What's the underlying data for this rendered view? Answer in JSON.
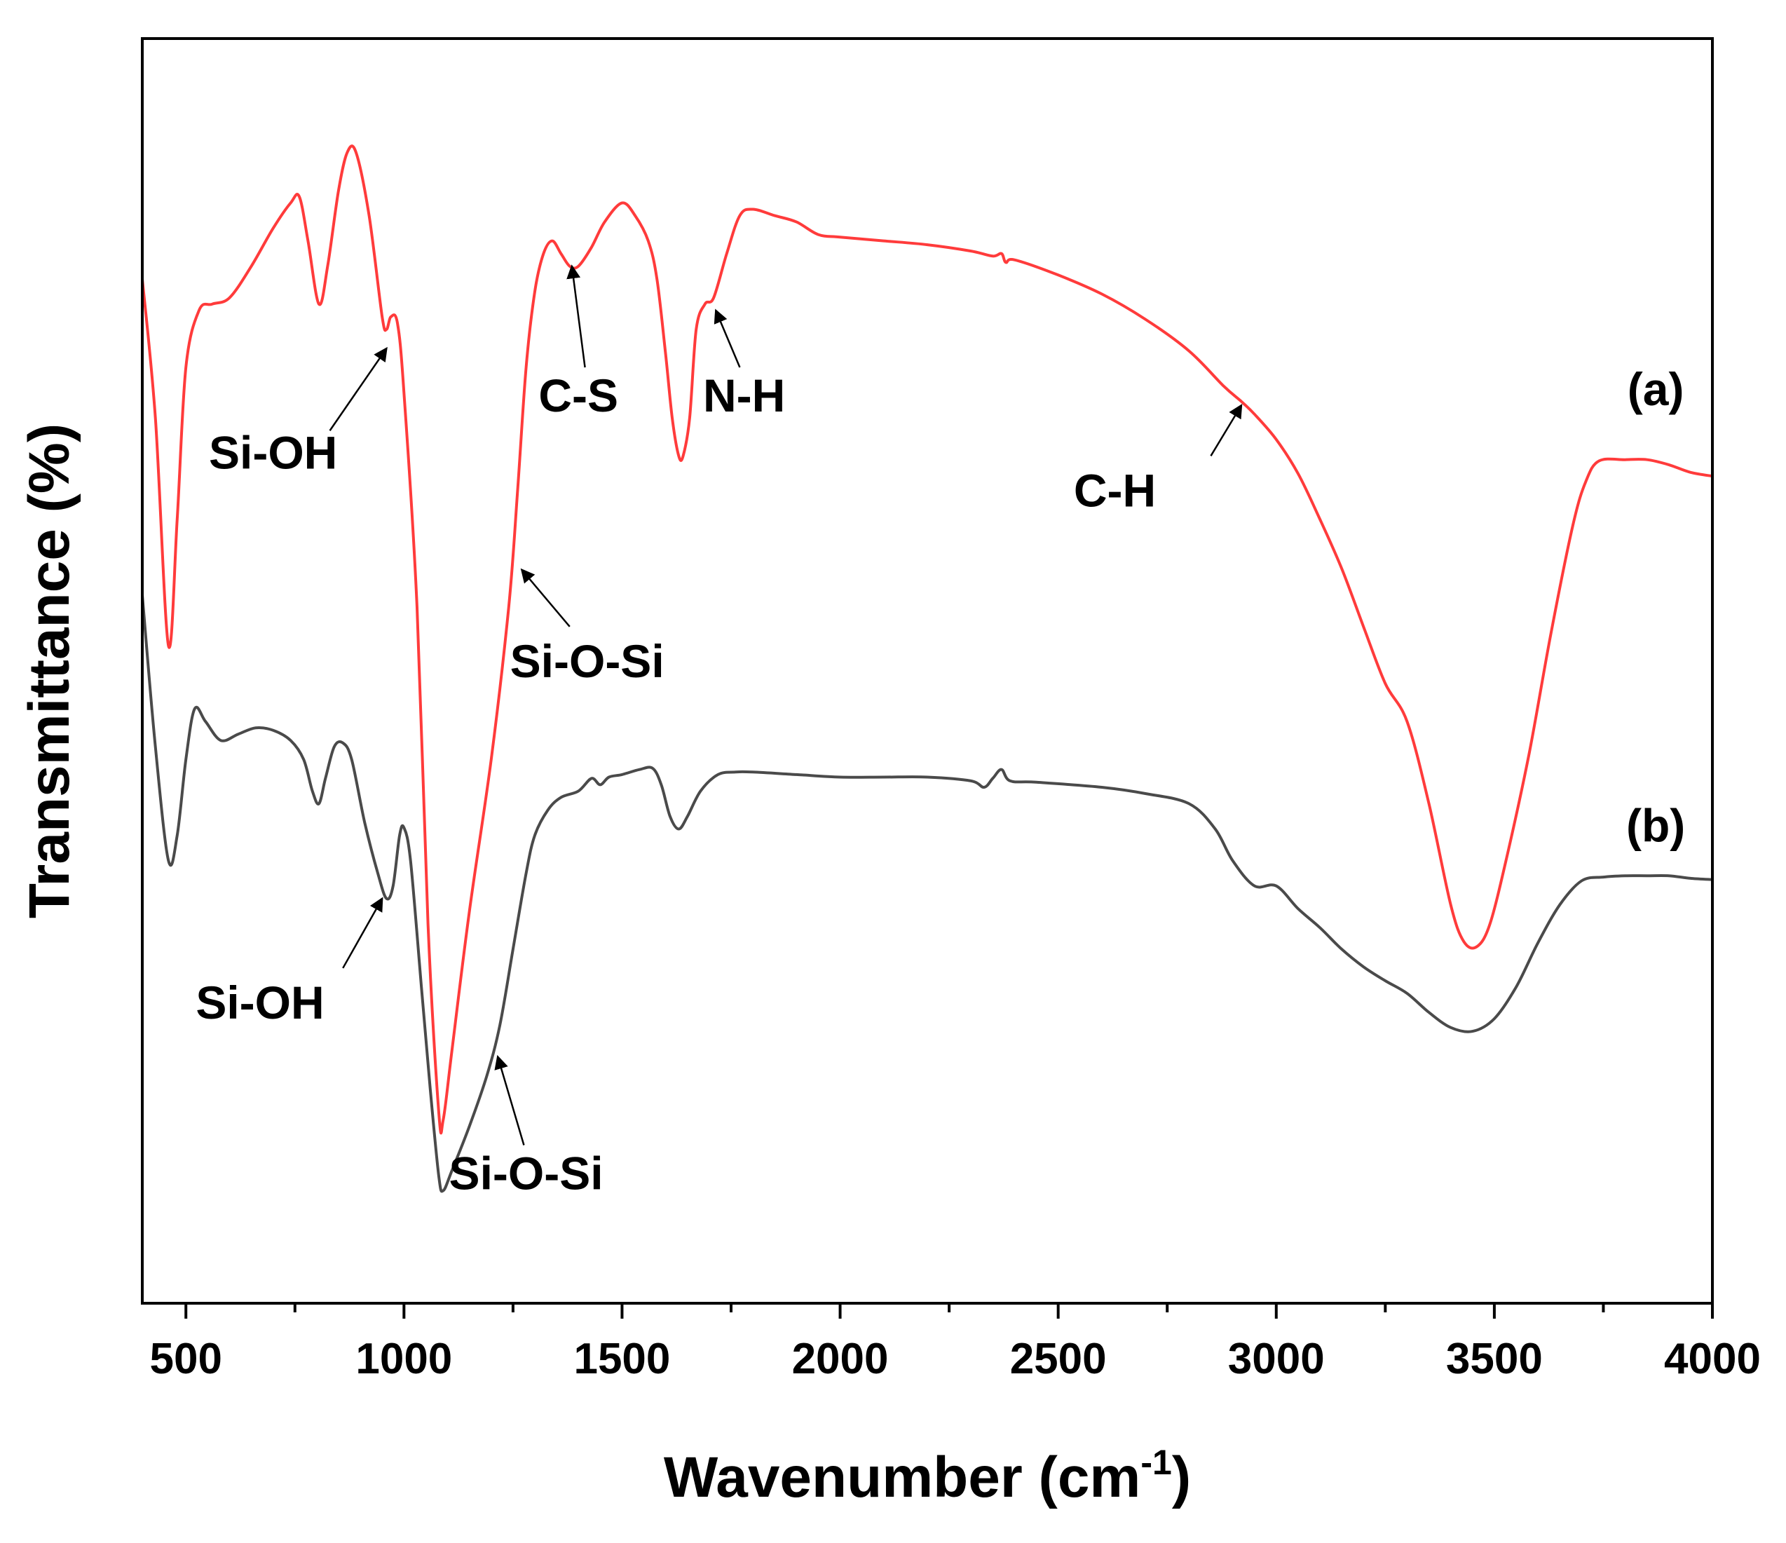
{
  "chart_data": {
    "type": "line",
    "title": "",
    "xlabel_main": "Wavenumber (cm",
    "xlabel_sup": "-1",
    "xlabel_close": ")",
    "ylabel": "Transmittance (%)",
    "xlim": [
      400,
      4000
    ],
    "ylim": [
      0,
      100
    ],
    "xticks": [
      "500",
      "1000",
      "1500",
      "2000",
      "2500",
      "3000",
      "3500",
      "4000"
    ],
    "yticks_shown": false,
    "series": [
      {
        "name": "(a)",
        "color": "#ff3b3b",
        "points": [
          [
            400,
            81
          ],
          [
            430,
            70
          ],
          [
            460,
            52
          ],
          [
            480,
            62
          ],
          [
            500,
            74
          ],
          [
            530,
            78.5
          ],
          [
            560,
            79
          ],
          [
            600,
            79.5
          ],
          [
            650,
            82
          ],
          [
            700,
            85
          ],
          [
            740,
            87
          ],
          [
            760,
            87.5
          ],
          [
            780,
            84
          ],
          [
            805,
            79
          ],
          [
            825,
            82
          ],
          [
            850,
            88
          ],
          [
            870,
            91
          ],
          [
            890,
            91
          ],
          [
            920,
            86
          ],
          [
            950,
            78
          ],
          [
            960,
            77
          ],
          [
            970,
            78
          ],
          [
            985,
            77.5
          ],
          [
            1000,
            72
          ],
          [
            1030,
            55
          ],
          [
            1055,
            30
          ],
          [
            1080,
            15
          ],
          [
            1090,
            14.5
          ],
          [
            1110,
            20
          ],
          [
            1150,
            31
          ],
          [
            1200,
            43
          ],
          [
            1240,
            55
          ],
          [
            1260,
            64
          ],
          [
            1280,
            74
          ],
          [
            1300,
            80
          ],
          [
            1320,
            83
          ],
          [
            1340,
            84
          ],
          [
            1360,
            83
          ],
          [
            1380,
            82
          ],
          [
            1400,
            82
          ],
          [
            1430,
            83.5
          ],
          [
            1460,
            85.5
          ],
          [
            1500,
            87
          ],
          [
            1530,
            86
          ],
          [
            1560,
            84
          ],
          [
            1580,
            81
          ],
          [
            1600,
            75
          ],
          [
            1615,
            70
          ],
          [
            1630,
            67
          ],
          [
            1640,
            67
          ],
          [
            1655,
            70
          ],
          [
            1670,
            77
          ],
          [
            1690,
            79
          ],
          [
            1710,
            79.5
          ],
          [
            1740,
            83
          ],
          [
            1770,
            86
          ],
          [
            1800,
            86.5
          ],
          [
            1850,
            86
          ],
          [
            1900,
            85.5
          ],
          [
            1950,
            84.5
          ],
          [
            2000,
            84.3
          ],
          [
            2100,
            84
          ],
          [
            2200,
            83.7
          ],
          [
            2300,
            83.2
          ],
          [
            2350,
            82.8
          ],
          [
            2370,
            83
          ],
          [
            2380,
            82.3
          ],
          [
            2400,
            82.5
          ],
          [
            2500,
            81.3
          ],
          [
            2600,
            79.8
          ],
          [
            2700,
            77.8
          ],
          [
            2800,
            75.3
          ],
          [
            2880,
            72.5
          ],
          [
            2920,
            71.3
          ],
          [
            2950,
            70.3
          ],
          [
            3000,
            68.3
          ],
          [
            3050,
            65.6
          ],
          [
            3100,
            62
          ],
          [
            3150,
            58.1
          ],
          [
            3200,
            53.5
          ],
          [
            3250,
            49
          ],
          [
            3300,
            46
          ],
          [
            3350,
            39.5
          ],
          [
            3400,
            31.5
          ],
          [
            3430,
            28.6
          ],
          [
            3460,
            28.2
          ],
          [
            3490,
            30
          ],
          [
            3530,
            35.5
          ],
          [
            3580,
            43.5
          ],
          [
            3630,
            53
          ],
          [
            3680,
            61.5
          ],
          [
            3710,
            65
          ],
          [
            3740,
            66.6
          ],
          [
            3800,
            66.7
          ],
          [
            3850,
            66.7
          ],
          [
            3900,
            66.3
          ],
          [
            3950,
            65.7
          ],
          [
            4000,
            65.4
          ]
        ]
      },
      {
        "name": "(b)",
        "color": "#4a4a4a",
        "points": [
          [
            400,
            56
          ],
          [
            430,
            44
          ],
          [
            460,
            35
          ],
          [
            480,
            37
          ],
          [
            500,
            43
          ],
          [
            520,
            47
          ],
          [
            545,
            46
          ],
          [
            580,
            44.5
          ],
          [
            620,
            45
          ],
          [
            660,
            45.5
          ],
          [
            700,
            45.3
          ],
          [
            740,
            44.5
          ],
          [
            770,
            43
          ],
          [
            790,
            40.5
          ],
          [
            805,
            39.5
          ],
          [
            820,
            41.5
          ],
          [
            840,
            44
          ],
          [
            860,
            44.3
          ],
          [
            880,
            43
          ],
          [
            910,
            38
          ],
          [
            940,
            34
          ],
          [
            960,
            32
          ],
          [
            975,
            33
          ],
          [
            990,
            37
          ],
          [
            1000,
            37.6
          ],
          [
            1015,
            35
          ],
          [
            1040,
            25
          ],
          [
            1060,
            17
          ],
          [
            1080,
            10
          ],
          [
            1090,
            8.9
          ],
          [
            1110,
            10.5
          ],
          [
            1150,
            14
          ],
          [
            1190,
            18
          ],
          [
            1220,
            22
          ],
          [
            1250,
            28
          ],
          [
            1280,
            34
          ],
          [
            1300,
            37
          ],
          [
            1330,
            39
          ],
          [
            1360,
            40
          ],
          [
            1400,
            40.5
          ],
          [
            1430,
            41.5
          ],
          [
            1450,
            41
          ],
          [
            1470,
            41.6
          ],
          [
            1500,
            41.8
          ],
          [
            1540,
            42.2
          ],
          [
            1570,
            42.3
          ],
          [
            1590,
            41
          ],
          [
            1610,
            38.5
          ],
          [
            1630,
            37.5
          ],
          [
            1650,
            38.5
          ],
          [
            1680,
            40.5
          ],
          [
            1720,
            41.8
          ],
          [
            1760,
            42
          ],
          [
            1800,
            42
          ],
          [
            1900,
            41.8
          ],
          [
            2000,
            41.6
          ],
          [
            2100,
            41.6
          ],
          [
            2200,
            41.6
          ],
          [
            2300,
            41.3
          ],
          [
            2330,
            40.8
          ],
          [
            2350,
            41.5
          ],
          [
            2370,
            42.2
          ],
          [
            2390,
            41.3
          ],
          [
            2450,
            41.2
          ],
          [
            2600,
            40.8
          ],
          [
            2700,
            40.3
          ],
          [
            2800,
            39.5
          ],
          [
            2860,
            37.5
          ],
          [
            2900,
            35
          ],
          [
            2950,
            33
          ],
          [
            3000,
            33
          ],
          [
            3050,
            31.2
          ],
          [
            3100,
            29.7
          ],
          [
            3150,
            28
          ],
          [
            3200,
            26.6
          ],
          [
            3250,
            25.5
          ],
          [
            3300,
            24.5
          ],
          [
            3350,
            23
          ],
          [
            3400,
            21.8
          ],
          [
            3450,
            21.5
          ],
          [
            3500,
            22.5
          ],
          [
            3550,
            25
          ],
          [
            3600,
            28.5
          ],
          [
            3650,
            31.5
          ],
          [
            3700,
            33.4
          ],
          [
            3750,
            33.7
          ],
          [
            3800,
            33.8
          ],
          [
            3850,
            33.8
          ],
          [
            3900,
            33.8
          ],
          [
            3950,
            33.6
          ],
          [
            4000,
            33.5
          ]
        ]
      }
    ],
    "series_labels": [
      {
        "text": "(a)",
        "x": 3870,
        "y": 71
      },
      {
        "text": "(b)",
        "x": 3870,
        "y": 36.5
      }
    ],
    "annotations": [
      {
        "text": "Si-OH",
        "label_x": 700,
        "label_y": 66,
        "tail": [
          830,
          69
        ],
        "head": [
          960,
          75.5
        ]
      },
      {
        "text": "C-S",
        "label_x": 1400,
        "label_y": 70.5,
        "tail": [
          1415,
          74
        ],
        "head": [
          1385,
          82
        ]
      },
      {
        "text": "N-H",
        "label_x": 1780,
        "label_y": 70.5,
        "tail": [
          1770,
          74
        ],
        "head": [
          1715,
          78.5
        ]
      },
      {
        "text": "C-H",
        "label_x": 2630,
        "label_y": 63,
        "tail": [
          2850,
          67
        ],
        "head": [
          2920,
          71
        ]
      },
      {
        "text": "Si-O-Si",
        "label_x": 1420,
        "label_y": 49.5,
        "tail": [
          1380,
          53.5
        ],
        "head": [
          1270,
          58
        ]
      },
      {
        "text": "Si-OH",
        "label_x": 670,
        "label_y": 22.5,
        "tail": [
          860,
          26.5
        ],
        "head": [
          950,
          32
        ]
      },
      {
        "text": "Si-O-Si",
        "label_x": 1280,
        "label_y": 9,
        "tail": [
          1275,
          12.5
        ],
        "head": [
          1215,
          19.5
        ]
      }
    ]
  }
}
